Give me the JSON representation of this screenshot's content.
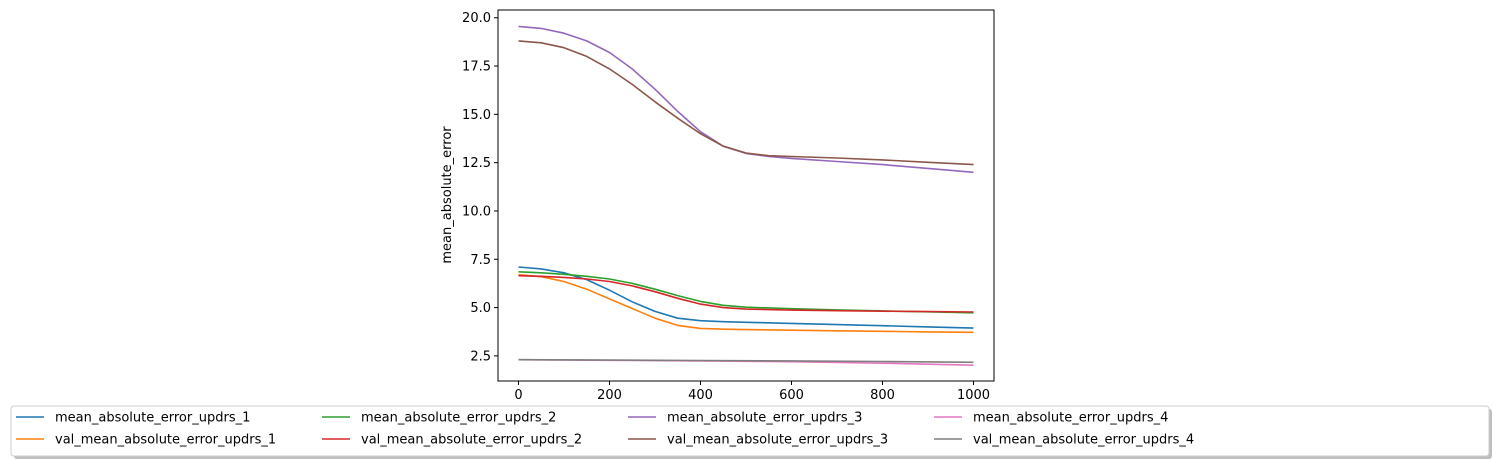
{
  "chart_data": {
    "type": "line",
    "title": "",
    "xlabel": "",
    "ylabel": "mean_absolute_error",
    "xlim": [
      -45,
      1045
    ],
    "ylim": [
      1.2,
      20.4
    ],
    "xticks": [
      0,
      200,
      400,
      600,
      800,
      1000
    ],
    "xtick_labels": [
      "0",
      "200",
      "400",
      "600",
      "800",
      "1000"
    ],
    "yticks": [
      2.5,
      5.0,
      7.5,
      10.0,
      12.5,
      15.0,
      17.5,
      20.0
    ],
    "ytick_labels": [
      "2.5",
      "5.0",
      "7.5",
      "10.0",
      "12.5",
      "15.0",
      "17.5",
      "20.0"
    ],
    "grid": false,
    "legend_placement": "bottom, outside plot, 5 columns",
    "series": [
      {
        "name": "mean_absolute_error_updrs_1",
        "color": "#1f77b4",
        "x": [
          0,
          50,
          100,
          150,
          200,
          250,
          300,
          350,
          400,
          450,
          500,
          600,
          700,
          800,
          900,
          1000
        ],
        "y": [
          7.1,
          7.0,
          6.8,
          6.45,
          5.9,
          5.3,
          4.8,
          4.45,
          4.32,
          4.27,
          4.24,
          4.18,
          4.12,
          4.06,
          4.0,
          3.94
        ]
      },
      {
        "name": "val_mean_absolute_error_updrs_1",
        "color": "#ff7f0e",
        "x": [
          0,
          50,
          100,
          150,
          200,
          250,
          300,
          350,
          400,
          450,
          500,
          600,
          700,
          800,
          900,
          1000
        ],
        "y": [
          6.7,
          6.6,
          6.35,
          5.95,
          5.45,
          4.95,
          4.45,
          4.08,
          3.92,
          3.88,
          3.86,
          3.83,
          3.8,
          3.77,
          3.74,
          3.72
        ]
      },
      {
        "name": "mean_absolute_error_updrs_2",
        "color": "#2ca02c",
        "x": [
          0,
          50,
          100,
          150,
          200,
          250,
          300,
          350,
          400,
          450,
          500,
          600,
          700,
          800,
          900,
          1000
        ],
        "y": [
          6.85,
          6.8,
          6.72,
          6.62,
          6.48,
          6.25,
          5.95,
          5.62,
          5.32,
          5.12,
          5.02,
          4.94,
          4.88,
          4.83,
          4.78,
          4.73
        ]
      },
      {
        "name": "val_mean_absolute_error_updrs_2",
        "color": "#d62728",
        "x": [
          0,
          50,
          100,
          150,
          200,
          250,
          300,
          350,
          400,
          450,
          500,
          600,
          700,
          800,
          900,
          1000
        ],
        "y": [
          6.65,
          6.62,
          6.56,
          6.48,
          6.35,
          6.12,
          5.82,
          5.48,
          5.18,
          5.0,
          4.92,
          4.87,
          4.84,
          4.81,
          4.79,
          4.77
        ]
      },
      {
        "name": "mean_absolute_error_updrs_3",
        "color": "#9467bd",
        "x": [
          0,
          50,
          100,
          150,
          200,
          250,
          300,
          350,
          400,
          450,
          500,
          550,
          600,
          700,
          800,
          900,
          1000
        ],
        "y": [
          19.55,
          19.45,
          19.2,
          18.8,
          18.2,
          17.35,
          16.3,
          15.15,
          14.1,
          13.35,
          12.98,
          12.82,
          12.72,
          12.56,
          12.4,
          12.2,
          12.0
        ]
      },
      {
        "name": "val_mean_absolute_error_updrs_3",
        "color": "#8c564b",
        "x": [
          0,
          50,
          100,
          150,
          200,
          250,
          300,
          350,
          400,
          450,
          500,
          550,
          600,
          700,
          800,
          900,
          1000
        ],
        "y": [
          18.8,
          18.7,
          18.45,
          18.0,
          17.35,
          16.55,
          15.65,
          14.8,
          14.0,
          13.35,
          13.0,
          12.86,
          12.82,
          12.74,
          12.64,
          12.52,
          12.4
        ]
      },
      {
        "name": "mean_absolute_error_updrs_4",
        "color": "#e377c2",
        "x": [
          0,
          200,
          400,
          600,
          700,
          800,
          900,
          1000
        ],
        "y": [
          2.3,
          2.27,
          2.24,
          2.2,
          2.16,
          2.12,
          2.07,
          2.02
        ]
      },
      {
        "name": "val_mean_absolute_error_updrs_4",
        "color": "#7f7f7f",
        "x": [
          0,
          200,
          400,
          600,
          800,
          1000
        ],
        "y": [
          2.3,
          2.28,
          2.26,
          2.24,
          2.21,
          2.17
        ]
      }
    ]
  }
}
